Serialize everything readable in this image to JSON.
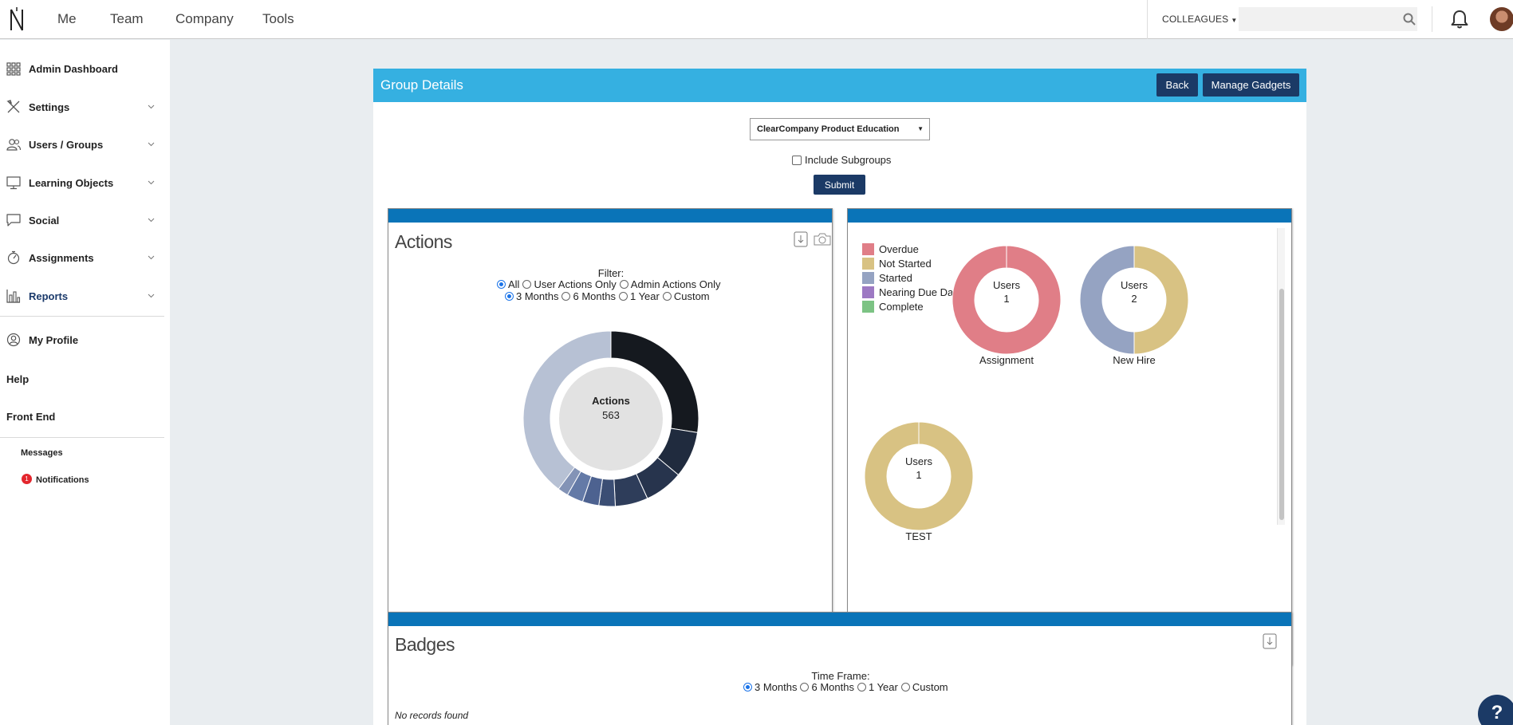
{
  "topbar": {
    "nav": [
      "Me",
      "Team",
      "Company",
      "Tools"
    ],
    "colleagues_label": "COLLEAGUES",
    "search_placeholder": ""
  },
  "sidebar": {
    "items": [
      {
        "label": "Admin Dashboard",
        "icon": "grid-icon"
      },
      {
        "label": "Settings",
        "icon": "tools-icon"
      },
      {
        "label": "Users / Groups",
        "icon": "users-icon"
      },
      {
        "label": "Learning Objects",
        "icon": "monitor-icon"
      },
      {
        "label": "Social",
        "icon": "chat-bubble-icon"
      },
      {
        "label": "Assignments",
        "icon": "stopwatch-icon"
      },
      {
        "label": "Reports",
        "icon": "bar-chart-icon"
      }
    ],
    "my_profile": "My Profile",
    "help": "Help",
    "front_end": "Front End",
    "messages": "Messages",
    "notifications": "Notifications",
    "notification_count": "1"
  },
  "panel": {
    "title": "Group Details",
    "back_label": "Back",
    "manage_label": "Manage Gadgets",
    "group_selected": "ClearCompany Product Education",
    "include_subgroups": "Include Subgroups",
    "submit_label": "Submit"
  },
  "actions": {
    "title": "Actions",
    "filter_label": "Filter:",
    "filter_options": [
      "All",
      "User Actions Only",
      "Admin Actions Only"
    ],
    "filter_selected": "All",
    "range_options": [
      "3 Months",
      "6 Months",
      "1 Year",
      "Custom"
    ],
    "range_selected": "3 Months",
    "center_title": "Actions",
    "center_value": "563"
  },
  "assignments": {
    "legend": [
      {
        "label": "Overdue",
        "color": "#e07e87"
      },
      {
        "label": "Not Started",
        "color": "#d8c283"
      },
      {
        "label": "Started",
        "color": "#95a3c2"
      },
      {
        "label": "Nearing Due Date",
        "color": "#9d79c3"
      },
      {
        "label": "Complete",
        "color": "#7cc384"
      }
    ],
    "donuts": [
      {
        "name": "Assignment",
        "center_title": "Users",
        "center_value": "1"
      },
      {
        "name": "New Hire",
        "center_title": "Users",
        "center_value": "2"
      },
      {
        "name": "TEST",
        "center_title": "Users",
        "center_value": "1"
      }
    ]
  },
  "badges": {
    "title": "Badges",
    "time_frame_label": "Time Frame:",
    "range_options": [
      "3 Months",
      "6 Months",
      "1 Year",
      "Custom"
    ],
    "range_selected": "3 Months",
    "empty_text": "No records found"
  },
  "help_label": "?",
  "chart_data": [
    {
      "type": "pie",
      "title": "Actions",
      "total": 563,
      "series": [
        {
          "values": [
            155,
            48,
            40,
            34,
            17,
            17,
            17,
            11,
            224
          ],
          "colors": [
            "#15191f",
            "#202b3e",
            "#27344d",
            "#2e3d5a",
            "#3b4e74",
            "#4d6290",
            "#647aa7",
            "#8393b6",
            "#b7c1d4"
          ]
        }
      ]
    },
    {
      "type": "pie",
      "title": "Assignment",
      "categories": [
        "Overdue",
        "Not Started",
        "Started",
        "Nearing Due Date",
        "Complete"
      ],
      "values": [
        1,
        0,
        0,
        0,
        0
      ]
    },
    {
      "type": "pie",
      "title": "New Hire",
      "categories": [
        "Overdue",
        "Not Started",
        "Started",
        "Nearing Due Date",
        "Complete"
      ],
      "values": [
        0,
        1,
        1,
        0,
        0
      ]
    },
    {
      "type": "pie",
      "title": "TEST",
      "categories": [
        "Overdue",
        "Not Started",
        "Started",
        "Nearing Due Date",
        "Complete"
      ],
      "values": [
        0,
        1,
        0,
        0,
        0
      ]
    }
  ]
}
